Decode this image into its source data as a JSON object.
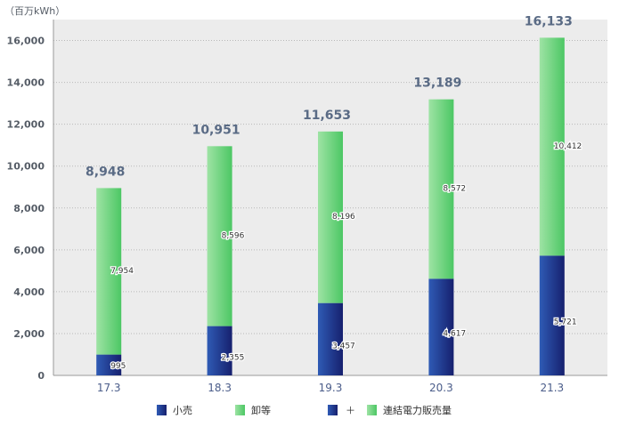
{
  "chart_data": {
    "type": "bar",
    "stacked": true,
    "unit_label": "（百万kWh）",
    "categories": [
      "17.3",
      "18.3",
      "19.3",
      "20.3",
      "21.3"
    ],
    "series": [
      {
        "name": "小売",
        "values": [
          995,
          2355,
          3457,
          4617,
          5721
        ],
        "color": "#1f3a8a"
      },
      {
        "name": "卸等",
        "values": [
          7954,
          8596,
          8196,
          8572,
          10412
        ],
        "color": "#5fcf6f"
      }
    ],
    "totals": [
      "8,948",
      "10,951",
      "11,653",
      "13,189",
      "16,133"
    ],
    "segment_labels": {
      "小売": [
        "995",
        "2,355",
        "3,457",
        "4,617",
        "5,721"
      ],
      "卸等": [
        "7,954",
        "8,596",
        "8,196",
        "8,572",
        "10,412"
      ]
    },
    "yticks": [
      "0",
      "2,000",
      "4,000",
      "6,000",
      "8,000",
      "10,000",
      "12,000",
      "14,000",
      "16,000"
    ],
    "ylim": [
      0,
      17000
    ],
    "grid": true,
    "legend": {
      "position": "bottom",
      "items": [
        {
          "label": "小売"
        },
        {
          "label": "卸等"
        },
        {
          "label": "連結電力販売量",
          "prefix": "＋"
        }
      ]
    }
  }
}
